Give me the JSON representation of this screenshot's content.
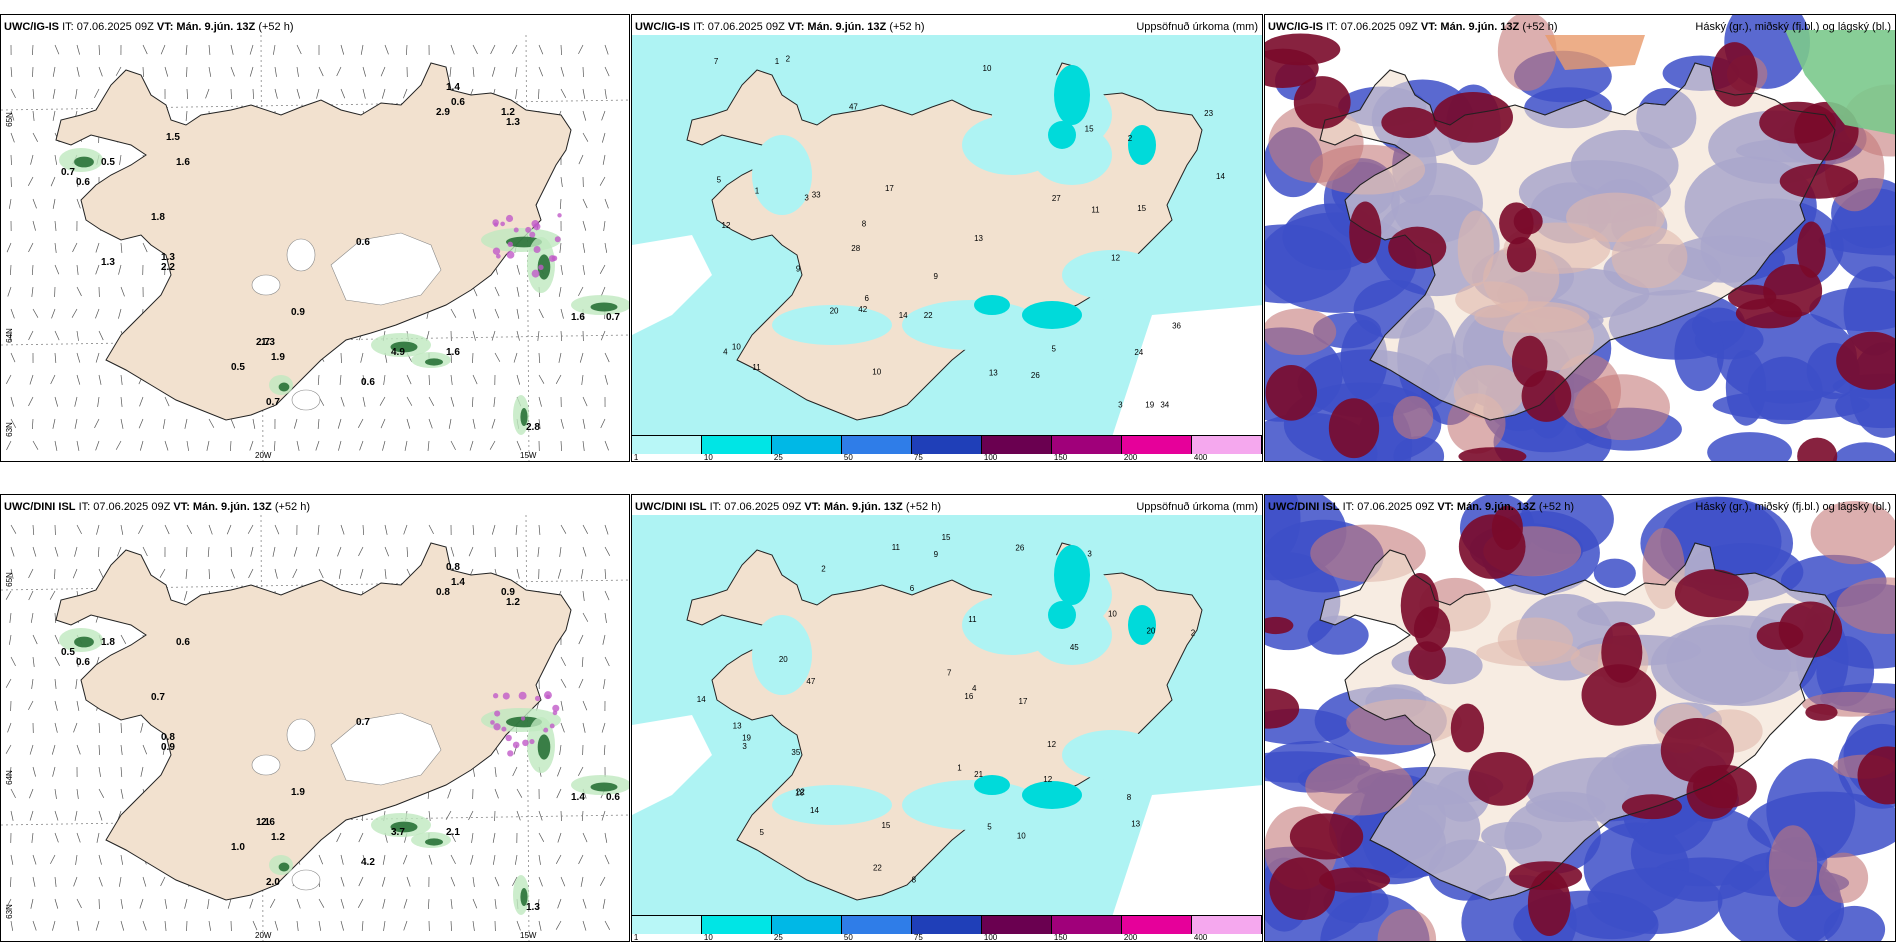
{
  "rows": [
    {
      "model": "UWC/IG-IS",
      "wind_panel": {
        "it_label": "IT: 07.06.2025 09Z",
        "vt_label": "VT: Mán. 9.jún. 13Z",
        "lead": "(+52 h)",
        "lat_labels": [
          "65N",
          "64N",
          "63N"
        ],
        "lon_labels": [
          "20W",
          "15W"
        ]
      },
      "precip_panel": {
        "it_label": "IT: 07.06.2025 09Z",
        "vt_label": "VT: Mán. 9.jún. 13Z",
        "lead": "(+52 h)",
        "variable": "Uppsöfnuð úrkoma (mm)"
      },
      "cloud_panel": {
        "it_label": "IT: 07.06.2025 09Z",
        "vt_label": "VT: Mán. 9.jún. 13Z",
        "lead": "(+52 h)",
        "variable": "Háský (gr.), miðský (fj.bl.) og lágský (bl.)"
      }
    },
    {
      "model": "UWC/DINI ISL",
      "wind_panel": {
        "it_label": "IT: 07.06.2025 09Z",
        "vt_label": "VT: Mán. 9.jún. 13Z",
        "lead": "(+52 h)",
        "lat_labels": [
          "65N",
          "64N",
          "63N"
        ],
        "lon_labels": [
          "20W",
          "15W"
        ]
      },
      "precip_panel": {
        "it_label": "IT: 07.06.2025 09Z",
        "vt_label": "VT: Mán. 9.jún. 13Z",
        "lead": "(+52 h)",
        "variable": "Uppsöfnuð úrkoma (mm)"
      },
      "cloud_panel": {
        "it_label": "IT: 07.06.2025 09Z",
        "vt_label": "VT: Mán. 9.jún. 13Z",
        "lead": "(+52 h)",
        "variable": "Háský (gr.), miðský (fj.bl.) og lágský (bl.)"
      }
    }
  ],
  "precip_legend": {
    "ticks": [
      "1",
      "10",
      "25",
      "50",
      "75",
      "100",
      "150",
      "200",
      "400"
    ],
    "colors": [
      "#b8f7f7",
      "#00e5e5",
      "#00b8e6",
      "#2f7de8",
      "#1f3fb8",
      "#6a0050",
      "#a0007a",
      "#e6009a",
      "#f5a8ee"
    ]
  },
  "colors": {
    "land": "#f2e1cf",
    "precip_light": "#aef3f3",
    "precip_mid": "#00dada",
    "cloud_low": "#3d4fc8",
    "cloud_mid": "#4a6fd8",
    "cloud_high": "#7a0a2a",
    "green_precip": "#5bbf6a"
  },
  "wind_values_top": [
    "1.4",
    "0.6",
    "1.2",
    "1.3",
    "2.9",
    "0.7",
    "0.6",
    "0.5",
    "1.8",
    "1.6",
    "2.2",
    "1.3",
    "0.9",
    "0.6",
    "0.5",
    "1.3",
    "1.9",
    "0.6",
    "0.7",
    "1.6",
    "0.7",
    "4.9",
    "2.7",
    "1.6",
    "2.8",
    "1.3",
    "1.5"
  ],
  "wind_values_bottom": [
    "0.8",
    "1.4",
    "0.9",
    "1.2",
    "0.8",
    "0.5",
    "0.6",
    "1.8",
    "0.7",
    "0.6",
    "0.9",
    "0.8",
    "1.9",
    "0.7",
    "1.0",
    "2.6",
    "1.2",
    "4.2",
    "2.0",
    "1.4",
    "0.6",
    "3.7",
    "1.1",
    "2.1",
    "1.3"
  ],
  "precip_values_top": [
    "9",
    "3",
    "1",
    "12",
    "34",
    "47",
    "22",
    "28",
    "42",
    "11",
    "15",
    "10",
    "7",
    "3",
    "8",
    "5",
    "13",
    "14",
    "23",
    "17",
    "19",
    "33",
    "26",
    "20",
    "24",
    "27",
    "13",
    "10",
    "2",
    "4",
    "6",
    "14",
    "11",
    "36",
    "15",
    "5",
    "1",
    "2",
    "9",
    "10",
    "12"
  ],
  "precip_values_bottom": [
    "5",
    "3",
    "2",
    "10",
    "21",
    "47",
    "35",
    "22",
    "20",
    "45",
    "13",
    "15",
    "12",
    "16",
    "8",
    "11",
    "13",
    "14",
    "18",
    "22",
    "10",
    "9",
    "6",
    "4",
    "7",
    "15",
    "19",
    "26",
    "11",
    "12",
    "20",
    "14",
    "5",
    "1",
    "8",
    "3",
    "2",
    "17"
  ]
}
